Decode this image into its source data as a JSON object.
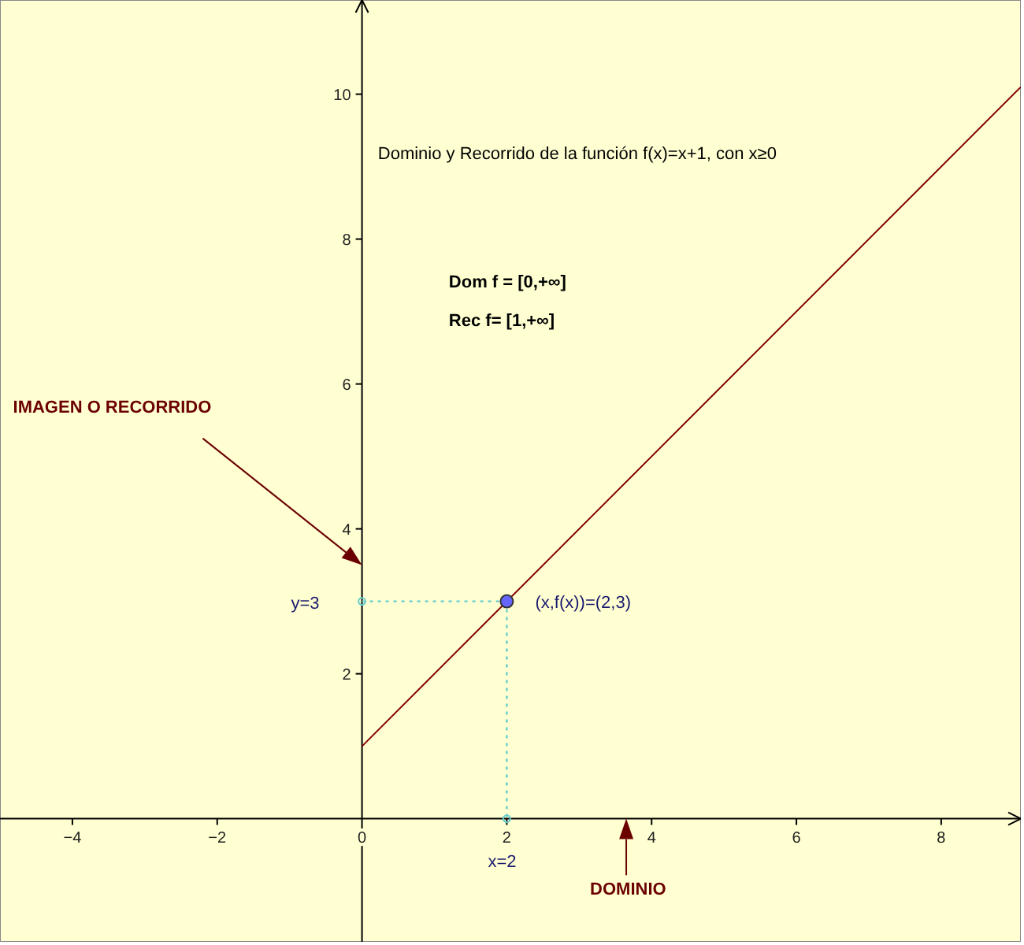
{
  "chart_data": {
    "type": "line",
    "xlim": [
      -5,
      9.1
    ],
    "ylim": [
      -1.7,
      11.3
    ],
    "xticks": [
      {
        "value": -4,
        "label": "−4"
      },
      {
        "value": -2,
        "label": "−2"
      },
      0,
      2,
      4,
      6,
      8
    ],
    "yticks": [
      2,
      4,
      6,
      8,
      10
    ],
    "series": [
      {
        "color": "#800000",
        "x": [
          0,
          9.1
        ],
        "values": [
          1,
          10.1
        ],
        "line_style": "solid",
        "marker": "none"
      },
      {
        "color": "#66cccc",
        "x": [
          0,
          2
        ],
        "values": [
          3,
          3
        ],
        "line_style": "dotted",
        "marker": "circle"
      },
      {
        "color": "#66cccc",
        "x": [
          2,
          2
        ],
        "values": [
          3,
          0
        ],
        "line_style": "dotted",
        "marker": "circle"
      },
      {
        "type": "scatter",
        "color": "#6666ff",
        "x": [
          2
        ],
        "values": [
          3
        ],
        "marker": "circle"
      }
    ],
    "annotations": [
      "Dominio y Recorrido de la función f(x)=x+1, con x≥0",
      "Dom f = [0,+∞]",
      "Rec f= [1,+∞]",
      "IMAGEN O RECORRIDO",
      "DOMINIO",
      "y=3",
      "x=2",
      {
        "text": "(x,f(x))=(2,3)",
        "x": 2,
        "y": 3
      }
    ]
  }
}
